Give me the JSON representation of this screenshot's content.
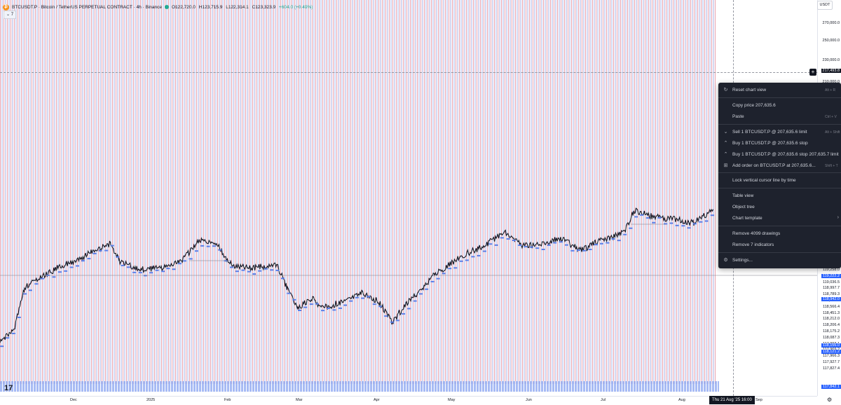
{
  "header": {
    "symbol_title": "BTCUSDT.P · Bitcoin / TetherUS PERPETUAL CONTRACT · 4h · Binance",
    "ohlc": [
      "O122,720.0",
      "H123,715.9",
      "L122,314.1",
      "C123,323.9",
      "+604.0 (+0.49%)"
    ],
    "indicators_toggle": "7"
  },
  "price_axis": {
    "currency": "USDT",
    "labels": [
      "270,000.0",
      "250,000.0",
      "230,000.0",
      "210,000.0",
      "119,258.0",
      "119,111.8",
      "119,036.5",
      "118,997.7",
      "118,789.3",
      "118,579.1",
      "118,566.4",
      "118,451.3",
      "118,212.0",
      "118,206.4",
      "118,175.2",
      "118,087.3",
      "117,993.1",
      "117,969.2",
      "117,966.3",
      "117,927.7",
      "117,827.4"
    ],
    "highlighted": [
      "119,222.2",
      "118,942.0",
      "118,156.0",
      "118,121.2",
      "117,842.1"
    ],
    "crosshair_price": "217,493.8"
  },
  "time_axis": {
    "labels": [
      "Dec",
      "2025",
      "Feb",
      "Mar",
      "Apr",
      "May",
      "Jun",
      "Jul",
      "Aug",
      "Sep"
    ],
    "cursor_label": "Thu 21 Aug '25   16:00"
  },
  "context_menu": {
    "items": [
      {
        "label": "Reset chart view",
        "shortcut": "Alt + R",
        "icon": "reset-icon"
      },
      {
        "label": "Copy price 207,635.6",
        "shortcut": "",
        "icon": ""
      },
      {
        "label": "Paste",
        "shortcut": "Ctrl + V",
        "icon": ""
      },
      {
        "label": "Sell 1 BTCUSDT.P @ 207,635.6 limit",
        "shortcut": "Alt + Shift + S",
        "icon": "sell-icon"
      },
      {
        "label": "Buy 1 BTCUSDT.P @ 207,635.6 stop",
        "shortcut": "",
        "icon": "buy-icon"
      },
      {
        "label": "Buy 1 BTCUSDT.P @ 207,635.6 stop 207,635.7 limit",
        "shortcut": "",
        "icon": "buy-icon"
      },
      {
        "label": "Add order on BTCUSDT.P at 207,635.6...",
        "shortcut": "Shift + T",
        "icon": "add-order-icon"
      },
      {
        "label": "Lock vertical cursor line by time",
        "shortcut": "",
        "icon": ""
      },
      {
        "label": "Table view",
        "shortcut": "",
        "icon": ""
      },
      {
        "label": "Object tree",
        "shortcut": "",
        "icon": ""
      },
      {
        "label": "Chart template",
        "shortcut": "",
        "icon": "",
        "submenu": true
      },
      {
        "label": "Remove 4099 drawings",
        "shortcut": "",
        "icon": ""
      },
      {
        "label": "Remove 7 indicators",
        "shortcut": "",
        "icon": ""
      },
      {
        "label": "Settings...",
        "shortcut": "",
        "icon": "gear-icon"
      }
    ]
  },
  "colors": {
    "candle": "#131722",
    "stripe_red": "#d65870",
    "stripe_blue": "#6070d0",
    "label_blue": "#2962ff",
    "menu_bg": "#1e222d"
  }
}
